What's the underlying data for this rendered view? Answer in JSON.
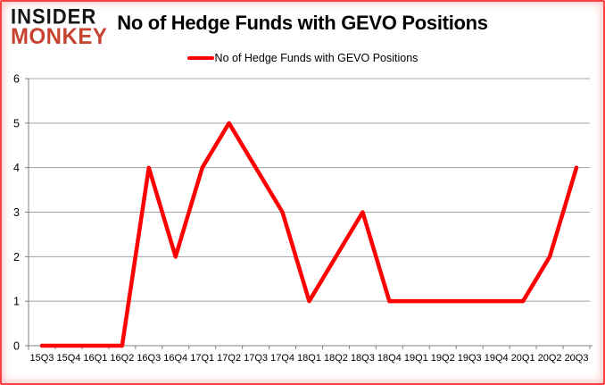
{
  "logo": {
    "line1": "INSIDER",
    "line2": "MONKEY",
    "line1_color": "#161616",
    "line2_color": "#c8432f"
  },
  "header": {
    "title": "No of Hedge Funds with GEVO Positions"
  },
  "legend": {
    "label": "No of Hedge Funds with GEVO Positions",
    "line_color": "#ff0000"
  },
  "chart_data": {
    "type": "line",
    "title": "No of Hedge Funds with GEVO Positions",
    "categories": [
      "15Q3",
      "15Q4",
      "16Q1",
      "16Q2",
      "16Q3",
      "16Q4",
      "17Q1",
      "17Q2",
      "17Q3",
      "17Q4",
      "18Q1",
      "18Q2",
      "18Q3",
      "18Q4",
      "19Q1",
      "19Q2",
      "19Q3",
      "19Q4",
      "20Q1",
      "20Q2",
      "20Q3"
    ],
    "series": [
      {
        "name": "No of Hedge Funds with GEVO Positions",
        "color": "#ff0000",
        "values": [
          0,
          0,
          0,
          0,
          4,
          2,
          4,
          5,
          4,
          3,
          1,
          2,
          3,
          1,
          1,
          1,
          1,
          1,
          1,
          2,
          4
        ]
      }
    ],
    "xlabel": "",
    "ylabel": "",
    "ylim": [
      0,
      6
    ],
    "ytick_interval": 1,
    "yticks": [
      0,
      1,
      2,
      3,
      4,
      5,
      6
    ],
    "grid": true,
    "gridline_color": "#a3a3a3",
    "axis_color": "#808080",
    "legend_position": "top-center"
  }
}
